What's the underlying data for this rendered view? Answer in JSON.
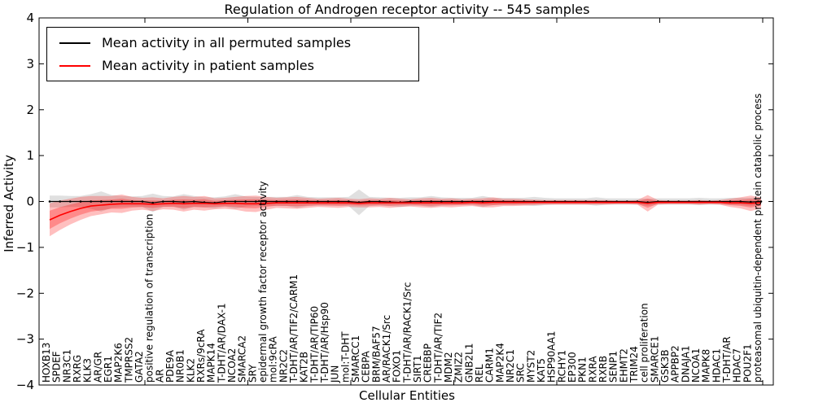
{
  "figure": {
    "background": "#ffffff"
  },
  "chart_data": {
    "type": "line",
    "title": "Regulation of Androgen receptor activity -- 545 samples",
    "xlabel": "Cellular Entities",
    "ylabel": "Inferred Activity",
    "ylim": [
      -4,
      4
    ],
    "yticks": [
      -4,
      -3,
      -2,
      -1,
      0,
      1,
      2,
      3,
      4
    ],
    "grid": false,
    "legend_position": "upper left",
    "categories": [
      "HOXB13",
      "SPDEF",
      "NR3C1",
      "RXRG",
      "KLK3",
      "AR/GR",
      "EGR1",
      "MAP2K6",
      "TMPRSS2",
      "GATA2",
      "positive regulation of transcription",
      "AR",
      "PDE9A",
      "NR0B1",
      "KLK2",
      "RXRs/9cRA",
      "MAPK14",
      "T-DHT/AR/DAX-1",
      "NCOA2",
      "SMARCA2",
      "SRY",
      "epidermal growth factor receptor activity",
      "mol:9cRA",
      "NR2C2",
      "T-DHT/AR/TIF2/CARM1",
      "KAT2B",
      "T-DHT/AR/TIP60",
      "T-DHT/AR/Hsp90",
      "JUN",
      "mol:T-DHT",
      "SMARCC1",
      "CEBPA",
      "BRM/BAF57",
      "AR/RACK1/Src",
      "FOXO1",
      "T-DHT/AR/RACK1/Src",
      "SIRT1",
      "CREBBP",
      "T-DHT/AR/TIF2",
      "MDM2",
      "ZMIZ2",
      "GNB2L1",
      "REL",
      "CARM1",
      "MAP2K4",
      "NR2C1",
      "SRC",
      "MYST2",
      "KAT5",
      "HSP90AA1",
      "RCHY1",
      "EP300",
      "PKN1",
      "RXRA",
      "RXRB",
      "SENP1",
      "EHMT2",
      "TRIM24",
      "cell proliferation",
      "SMARCE1",
      "GSK3B",
      "APPBP2",
      "DNAJA1",
      "NCOA1",
      "MAPK8",
      "HDAC1",
      "T-DHT/AR",
      "HDAC7",
      "POU2F1",
      "proteasomal ubiquitin-dependent protein catabolic process"
    ],
    "series": [
      {
        "name": "Mean activity in all permuted samples",
        "color": "#000000",
        "band_color": "#999999",
        "values": [
          0,
          0,
          0,
          0,
          0,
          0,
          0,
          0,
          0,
          0,
          -0.03,
          0,
          0,
          -0.01,
          0,
          -0.02,
          -0.03,
          0,
          0,
          0,
          0,
          0,
          0,
          0,
          0,
          0,
          0,
          0,
          0,
          0,
          -0.02,
          0,
          0,
          -0.01,
          -0.02,
          0,
          0,
          0,
          0,
          0,
          0,
          0,
          0,
          0,
          0,
          0,
          0,
          0,
          0,
          0,
          0,
          0,
          0,
          0,
          0,
          0,
          0,
          0,
          -0.02,
          0,
          0,
          0,
          0,
          0,
          0,
          0,
          0,
          0,
          -0.01,
          0
        ],
        "band_halfwidth": [
          0.13,
          0.13,
          0.12,
          0.12,
          0.16,
          0.22,
          0.14,
          0.12,
          0.11,
          0.12,
          0.2,
          0.12,
          0.11,
          0.17,
          0.12,
          0.11,
          0.12,
          0.11,
          0.16,
          0.11,
          0.1,
          0.1,
          0.1,
          0.1,
          0.14,
          0.1,
          0.09,
          0.09,
          0.09,
          0.1,
          0.28,
          0.1,
          0.09,
          0.09,
          0.1,
          0.09,
          0.09,
          0.12,
          0.09,
          0.08,
          0.08,
          0.08,
          0.12,
          0.08,
          0.08,
          0.08,
          0.08,
          0.1,
          0.08,
          0.07,
          0.07,
          0.07,
          0.07,
          0.09,
          0.07,
          0.07,
          0.07,
          0.07,
          0.08,
          0.07,
          0.07,
          0.07,
          0.07,
          0.08,
          0.07,
          0.07,
          0.08,
          0.08,
          0.09,
          0.09
        ]
      },
      {
        "name": "Mean activity in patient samples",
        "color": "#ff0000",
        "band_color": "#ff0000",
        "values": [
          -0.4,
          -0.3,
          -0.22,
          -0.15,
          -0.1,
          -0.08,
          -0.06,
          -0.05,
          -0.05,
          -0.05,
          -0.06,
          -0.05,
          -0.04,
          -0.05,
          -0.04,
          -0.04,
          -0.05,
          -0.04,
          -0.04,
          -0.05,
          -0.05,
          -0.04,
          -0.03,
          -0.03,
          -0.03,
          -0.03,
          -0.03,
          -0.03,
          -0.03,
          -0.03,
          -0.04,
          -0.03,
          -0.03,
          -0.03,
          -0.03,
          -0.03,
          -0.03,
          -0.03,
          -0.03,
          -0.03,
          -0.03,
          -0.02,
          -0.03,
          -0.02,
          -0.02,
          -0.02,
          -0.02,
          -0.02,
          -0.02,
          -0.02,
          -0.02,
          -0.02,
          -0.02,
          -0.02,
          -0.02,
          -0.02,
          -0.02,
          -0.02,
          -0.04,
          -0.02,
          -0.02,
          -0.02,
          -0.02,
          -0.02,
          -0.02,
          -0.02,
          -0.03,
          -0.03,
          -0.04,
          -0.03
        ],
        "band_halfwidth": [
          0.36,
          0.32,
          0.28,
          0.25,
          0.22,
          0.2,
          0.18,
          0.2,
          0.15,
          0.13,
          0.15,
          0.12,
          0.14,
          0.17,
          0.14,
          0.16,
          0.12,
          0.12,
          0.14,
          0.17,
          0.18,
          0.14,
          0.11,
          0.12,
          0.13,
          0.11,
          0.09,
          0.1,
          0.11,
          0.09,
          0.09,
          0.1,
          0.09,
          0.11,
          0.09,
          0.08,
          0.1,
          0.11,
          0.09,
          0.1,
          0.08,
          0.08,
          0.1,
          0.11,
          0.08,
          0.08,
          0.07,
          0.06,
          0.05,
          0.05,
          0.05,
          0.05,
          0.05,
          0.05,
          0.05,
          0.04,
          0.04,
          0.05,
          0.18,
          0.05,
          0.04,
          0.04,
          0.04,
          0.05,
          0.04,
          0.05,
          0.09,
          0.12,
          0.17,
          0.12
        ]
      }
    ]
  },
  "legend": {
    "items": [
      {
        "label": "Mean activity in all permuted samples",
        "color": "#000000"
      },
      {
        "label": "Mean activity in patient samples",
        "color": "#ff0000"
      }
    ]
  }
}
